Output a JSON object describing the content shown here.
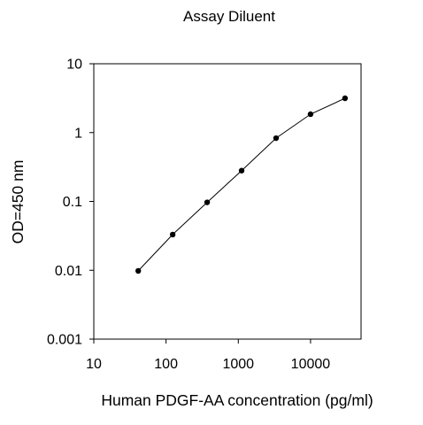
{
  "chart_data": {
    "type": "line",
    "title": "Assay Diluent",
    "xlabel": "Human PDGF-AA concentration (pg/ml)",
    "ylabel": "OD=450 nm",
    "x_scale": "log",
    "y_scale": "log",
    "xlim": [
      10,
      50000
    ],
    "ylim": [
      0.001,
      10
    ],
    "xticks": [
      10,
      100,
      1000,
      10000
    ],
    "xtick_labels": [
      "10",
      "100",
      "1000",
      "10000"
    ],
    "yticks": [
      0.001,
      0.01,
      0.1,
      1,
      10
    ],
    "ytick_labels": [
      "0.001",
      "0.01",
      "0.1",
      "1",
      "10"
    ],
    "grid": false,
    "legend": "none",
    "series": [
      {
        "x": [
          41.2,
          123.5,
          370.4,
          1111,
          3333,
          10000,
          30000
        ],
        "y": [
          0.0098,
          0.033,
          0.097,
          0.28,
          0.83,
          1.85,
          3.15
        ]
      }
    ],
    "colors": {
      "line": "#000000",
      "marker": "#000000"
    }
  }
}
